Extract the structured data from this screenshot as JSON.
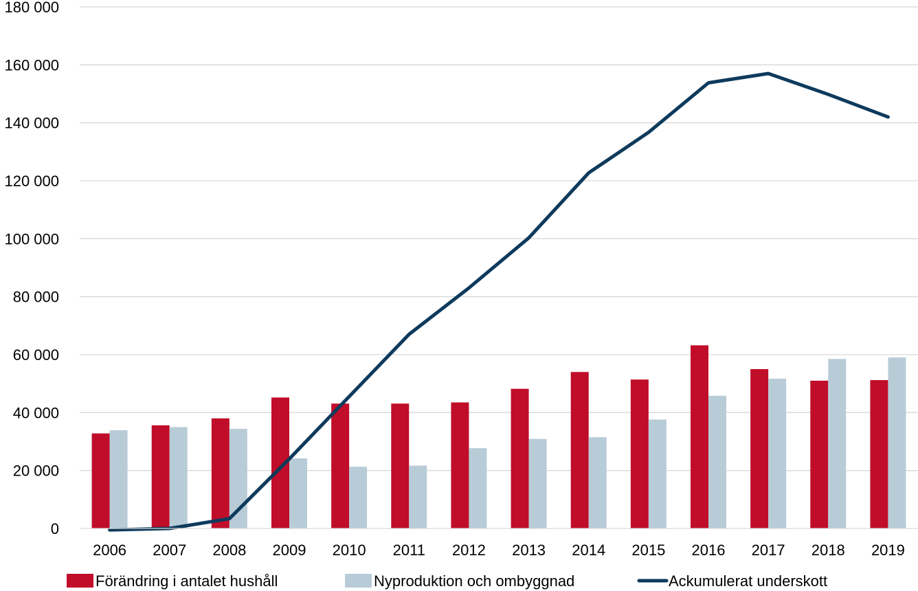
{
  "chart_data": {
    "type": "bar",
    "categories": [
      "2006",
      "2007",
      "2008",
      "2009",
      "2010",
      "2011",
      "2012",
      "2013",
      "2014",
      "2015",
      "2016",
      "2017",
      "2018",
      "2019"
    ],
    "series": [
      {
        "name": "Förändring i antalet hushåll",
        "kind": "bar",
        "color": "#c00d29",
        "values": [
          32800,
          35600,
          38000,
          45200,
          43100,
          43100,
          43500,
          48200,
          54000,
          51400,
          63200,
          55000,
          51000,
          51200
        ]
      },
      {
        "name": "Nyproduktion och ombyggnad",
        "kind": "bar",
        "color": "#b8ccd8",
        "values": [
          33900,
          35000,
          34400,
          24200,
          21300,
          21700,
          27700,
          30900,
          31500,
          37600,
          45800,
          51700,
          58500,
          59000
        ]
      },
      {
        "name": "Ackumulerat underskott",
        "kind": "line",
        "color": "#0e3a5c",
        "values": [
          -500,
          0,
          3400,
          24000,
          45500,
          67000,
          83000,
          100300,
          122700,
          136700,
          153800,
          157000,
          149800,
          142000
        ]
      }
    ],
    "title": "",
    "xlabel": "",
    "ylabel": "",
    "ylim": [
      0,
      180000
    ],
    "y_ticks": [
      0,
      20000,
      40000,
      60000,
      80000,
      100000,
      120000,
      140000,
      160000,
      180000
    ],
    "y_tick_labels": [
      "0",
      "20 000",
      "40 000",
      "60 000",
      "80 000",
      "100 000",
      "120 000",
      "140 000",
      "160 000",
      "180 000"
    ],
    "grid": "horizontal",
    "legend_position": "bottom"
  }
}
